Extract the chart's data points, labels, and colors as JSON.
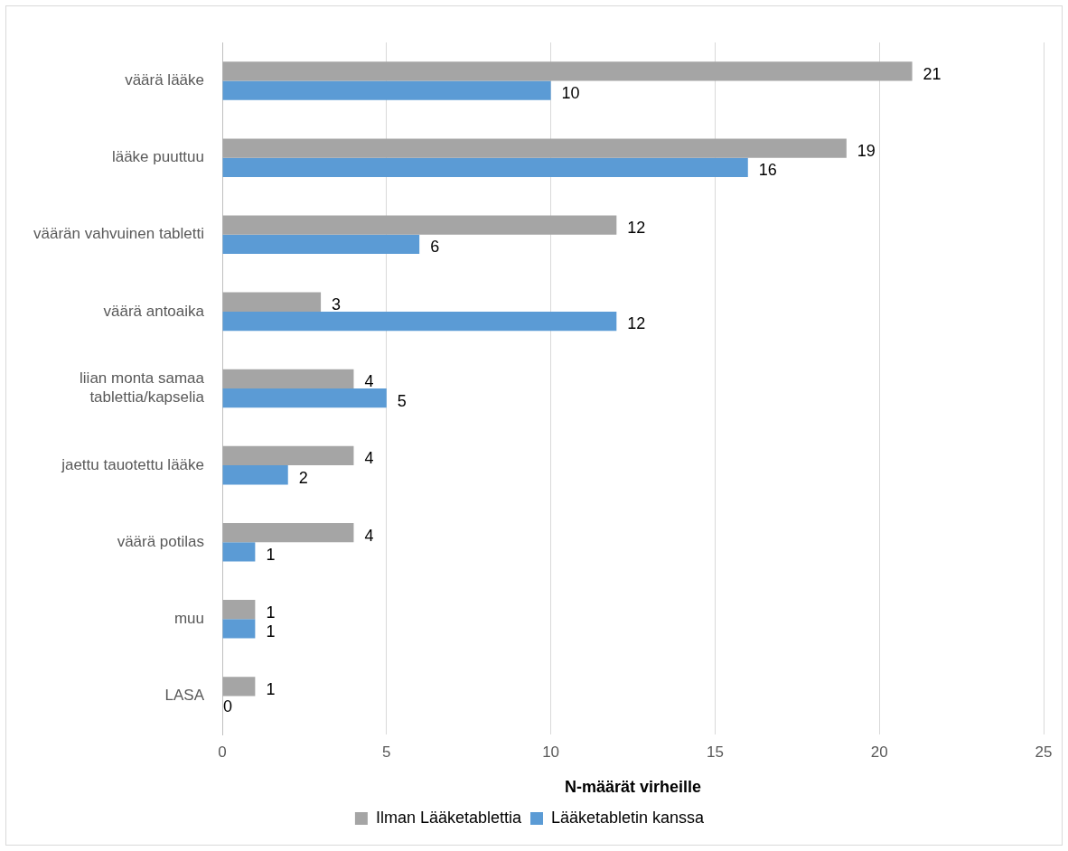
{
  "chart_data": {
    "type": "bar",
    "orientation": "horizontal",
    "xlabel": "N-määrät virheille",
    "categories": [
      "väärä lääke",
      "lääke puuttuu",
      "väärän vahvuinen tabletti",
      "väärä antoaika",
      "liian monta samaa tablettia/kapselia",
      "jaettu tauotettu lääke",
      "väärä potilas",
      "muu",
      "LASA"
    ],
    "series": [
      {
        "name": "Ilman Lääketablettia",
        "color": "#a5a5a5",
        "values": [
          21,
          19,
          12,
          3,
          4,
          4,
          4,
          1,
          1
        ]
      },
      {
        "name": "Lääketabletin kanssa",
        "color": "#5b9bd5",
        "values": [
          10,
          16,
          6,
          12,
          5,
          2,
          1,
          1,
          0
        ]
      }
    ],
    "xlim": [
      0,
      25
    ],
    "xticks": [
      0,
      5,
      10,
      15,
      20,
      25
    ],
    "grid": "x",
    "legend": "bottom",
    "data_labels": true
  }
}
